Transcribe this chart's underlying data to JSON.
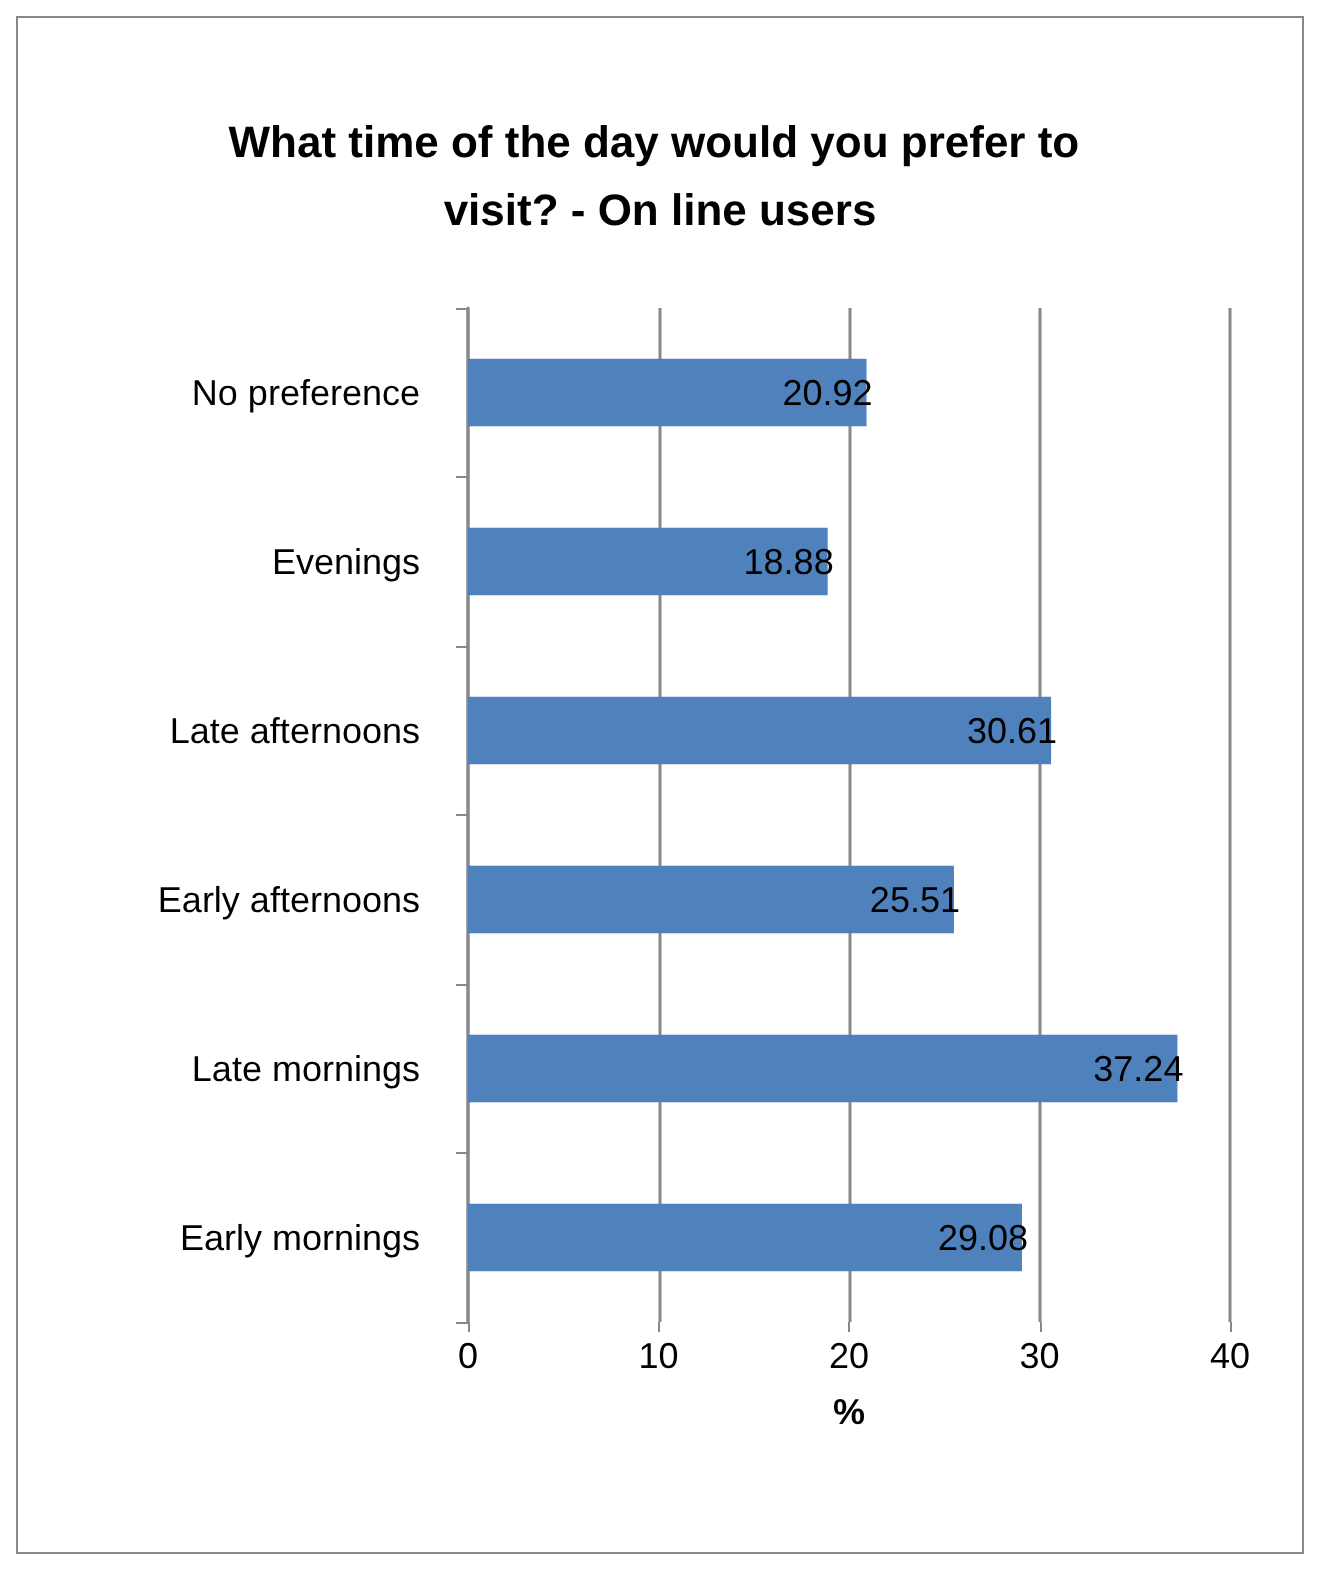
{
  "chart_data": {
    "type": "bar",
    "orientation": "horizontal",
    "title": "What time of the day would you prefer to visit? - On line users",
    "xlabel": "%",
    "categories": [
      "No preference",
      "Evenings",
      "Late afternoons",
      "Early afternoons",
      "Late mornings",
      "Early mornings"
    ],
    "values": [
      20.92,
      18.88,
      30.61,
      25.51,
      37.24,
      29.08
    ],
    "color": "#4f81bd",
    "xlim": [
      0,
      40
    ],
    "xticks": [
      0,
      10,
      20,
      30,
      40
    ],
    "grid": "x",
    "data_labels": true
  }
}
